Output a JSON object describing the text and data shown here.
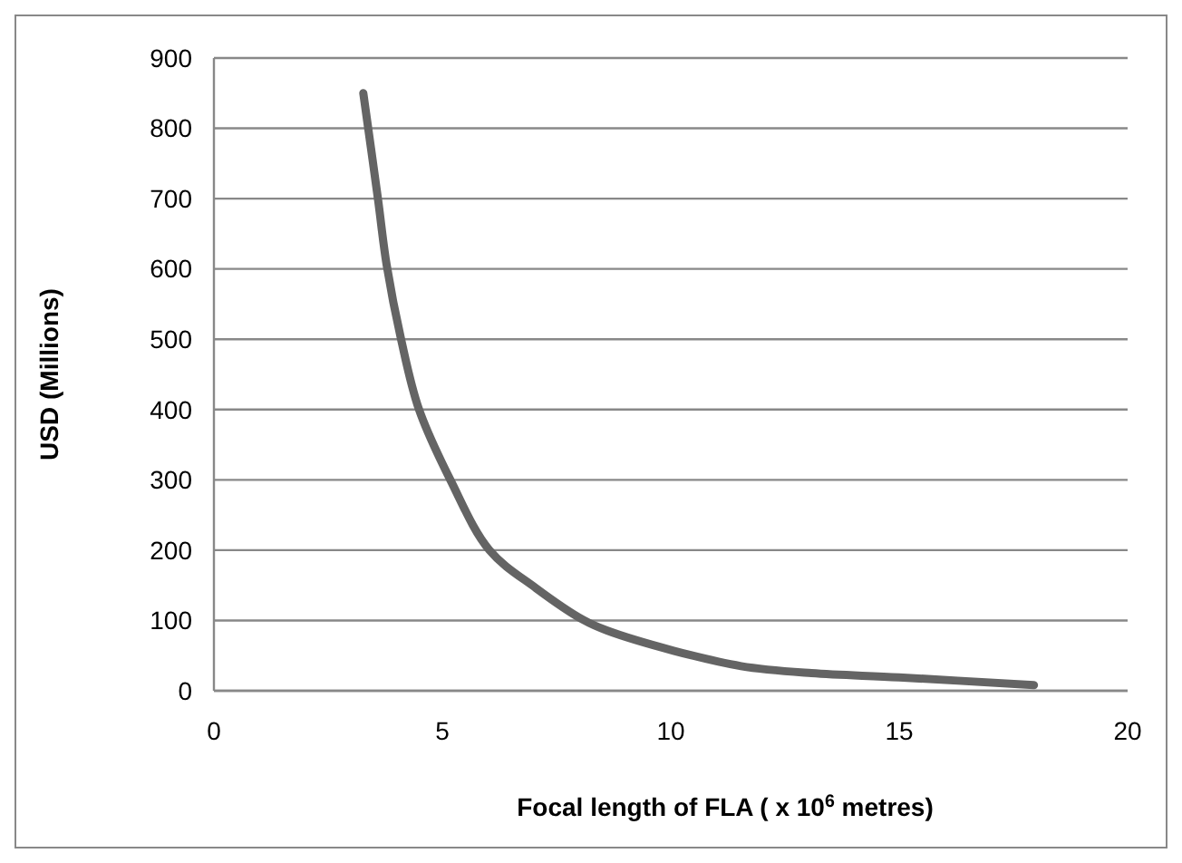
{
  "chart_data": {
    "type": "line",
    "xlabel": "Focal length of FLA ( x 10$^{6}$ metres)",
    "ylabel": "USD (Millions)",
    "xlim": [
      0,
      20
    ],
    "xticks": [
      0,
      5,
      10,
      15,
      20
    ],
    "ylim": [
      0,
      900
    ],
    "yticks": [
      0,
      100,
      200,
      300,
      400,
      500,
      600,
      700,
      800,
      900
    ],
    "grid": "y",
    "marker": "none",
    "line_style": "solid",
    "series": [
      {
        "color": "#646464",
        "x": [
          3.27,
          3.59,
          3.78,
          4.1,
          4.49,
          5.19,
          6.03,
          7.05,
          8.08,
          8.59,
          10.06,
          11.54,
          13.08,
          15,
          17.95
        ],
        "values": [
          850,
          700,
          606,
          499,
          400,
          298,
          200,
          146,
          101,
          86,
          57,
          35,
          25,
          19,
          8
        ]
      }
    ]
  }
}
